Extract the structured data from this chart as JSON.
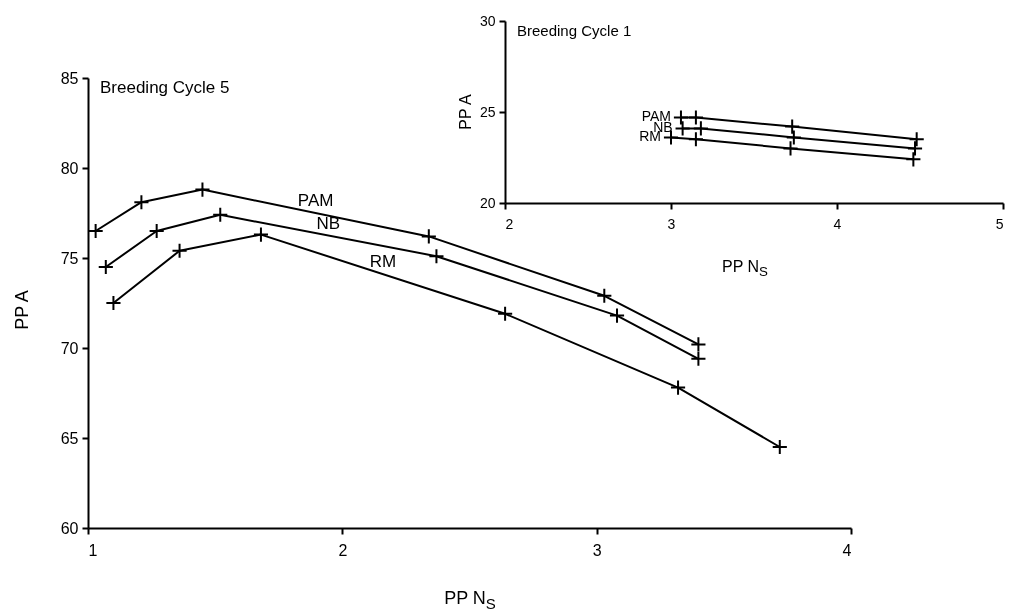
{
  "chart_data": [
    {
      "type": "line",
      "title": "Breeding Cycle 5",
      "xlabel": "PP N$_{S}$",
      "ylabel": "PP A",
      "xlim": [
        1,
        4
      ],
      "xticks": [
        1,
        2,
        3,
        4
      ],
      "ylim": [
        60,
        85
      ],
      "yticks": [
        60,
        65,
        70,
        75,
        80,
        85
      ],
      "grid": false,
      "legend": false,
      "marker": "cross",
      "line_style": "solid",
      "series": [
        {
          "name": "PAM",
          "color": "#000000",
          "x": [
            1.03,
            1.21,
            1.45,
            2.34,
            3.03,
            3.4
          ],
          "values": [
            76.5,
            78.1,
            78.8,
            76.2,
            72.9,
            70.2
          ]
        },
        {
          "name": "NB",
          "color": "#000000",
          "x": [
            1.07,
            1.27,
            1.52,
            2.37,
            3.08,
            3.4
          ],
          "values": [
            74.5,
            76.5,
            77.4,
            75.1,
            71.8,
            69.4
          ]
        },
        {
          "name": "RM",
          "color": "#000000",
          "x": [
            1.1,
            1.36,
            1.68,
            2.64,
            3.32,
            3.72
          ],
          "values": [
            72.5,
            75.4,
            76.3,
            71.9,
            67.8,
            64.5
          ]
        }
      ]
    },
    {
      "type": "line",
      "title": "Breeding Cycle 1",
      "xlabel": "PP N$_{S}$",
      "ylabel": "PP A",
      "xlim": [
        2,
        5
      ],
      "xticks": [
        2,
        3,
        4,
        5
      ],
      "ylim": [
        20,
        30
      ],
      "yticks": [
        20,
        25,
        30
      ],
      "grid": false,
      "legend": false,
      "marker": "cross",
      "line_style": "solid",
      "series": [
        {
          "name": "PAM",
          "color": "#000000",
          "x": [
            3.06,
            3.15,
            3.73,
            4.48
          ],
          "values": [
            24.7,
            24.7,
            24.2,
            23.5
          ]
        },
        {
          "name": "NB",
          "color": "#000000",
          "x": [
            3.07,
            3.18,
            3.74,
            4.47
          ],
          "values": [
            24.1,
            24.1,
            23.6,
            23.0
          ]
        },
        {
          "name": "RM",
          "color": "#000000",
          "x": [
            3.0,
            3.15,
            3.72,
            4.46
          ],
          "values": [
            23.6,
            23.5,
            23.0,
            22.4
          ]
        }
      ]
    }
  ]
}
